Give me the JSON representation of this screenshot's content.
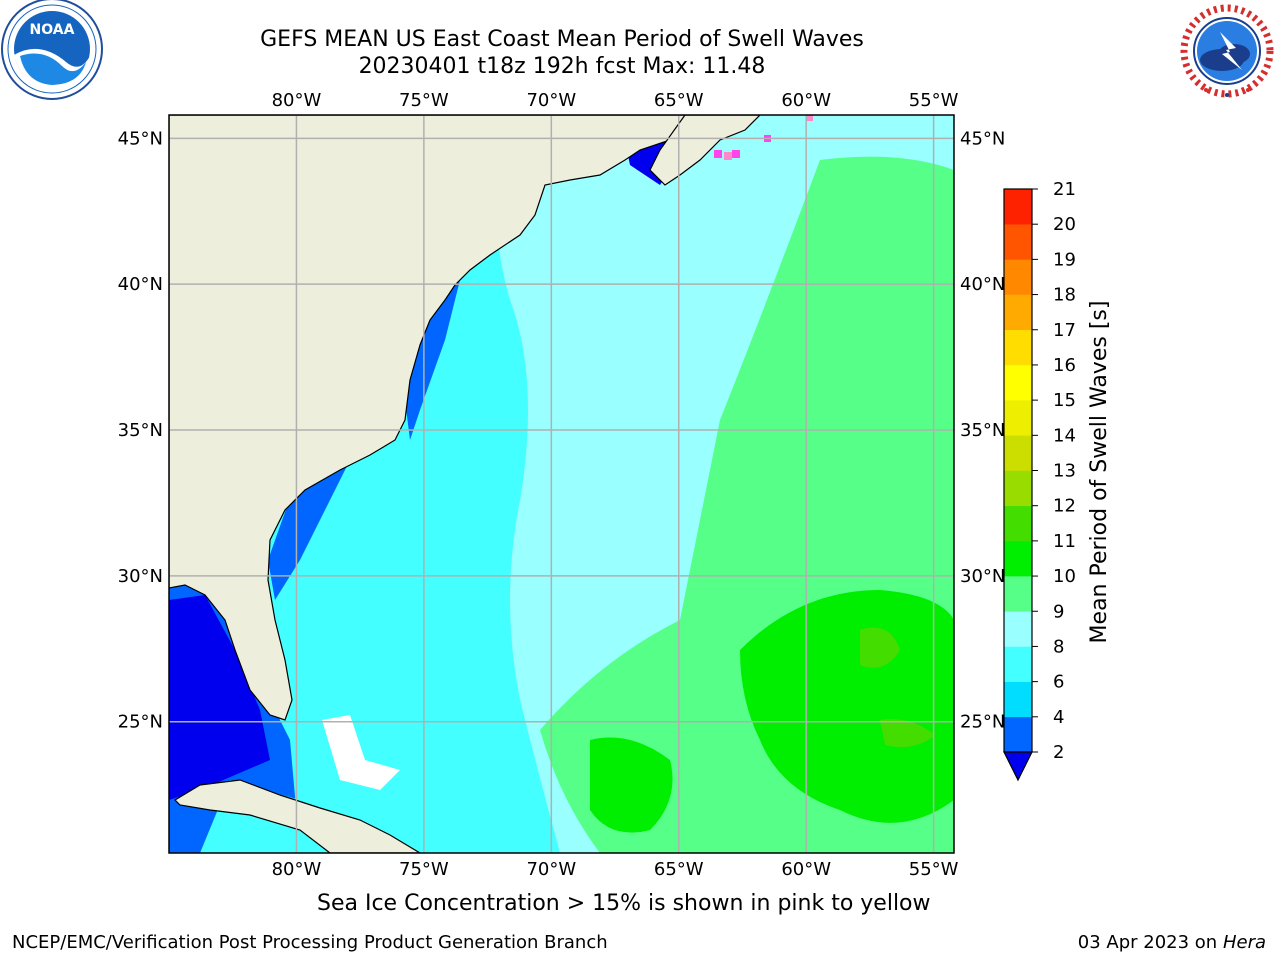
{
  "header": {
    "title_line1": "GEFS MEAN US East Coast Mean Period of Swell Waves",
    "title_line2": "20230401 t18z 192h fcst   Max: 11.48"
  },
  "logos": {
    "left": "noaa-logo",
    "right": "national-weather-service-logo",
    "right_ring_text": "NATIONAL WEATHER SERVICE"
  },
  "map": {
    "lon_labels": [
      "80°W",
      "75°W",
      "70°W",
      "65°W",
      "60°W",
      "55°W"
    ],
    "lat_labels": [
      "45°N",
      "40°N",
      "35°N",
      "30°N",
      "25°N"
    ],
    "lon_values": [
      -80,
      -75,
      -70,
      -65,
      -60,
      -55
    ],
    "lat_values": [
      45,
      40,
      35,
      30,
      25
    ],
    "extent": {
      "lon_min": -85,
      "lon_max": -54.2,
      "lat_min": 20.5,
      "lat_max": 45.8
    },
    "colors": {
      "land": "#EEEEDD",
      "grid": "#B0B0B0",
      "coast": "#000000"
    }
  },
  "colorbar": {
    "label": "Mean Period of Swell Waves [s]",
    "ticks": [
      "2",
      "4",
      "6",
      "8",
      "9",
      "10",
      "11",
      "12",
      "13",
      "14",
      "15",
      "16",
      "17",
      "18",
      "19",
      "20",
      "21"
    ],
    "colors": [
      "#0066FF",
      "#00DDFF",
      "#44FFFF",
      "#99FFFF",
      "#55FF88",
      "#00EE00",
      "#44DD00",
      "#99DD00",
      "#CCDD00",
      "#EEEE00",
      "#FFFF00",
      "#FFDD00",
      "#FFAA00",
      "#FF8800",
      "#FF5500",
      "#FF2200"
    ],
    "under_color": "#0000EE"
  },
  "note": "Sea Ice Concentration > 15% is shown in pink to yellow",
  "footer": {
    "left": "NCEP/EMC/Verification Post Processing Product Generation Branch",
    "date": "03 Apr 2023 on ",
    "machine": "Hera"
  }
}
